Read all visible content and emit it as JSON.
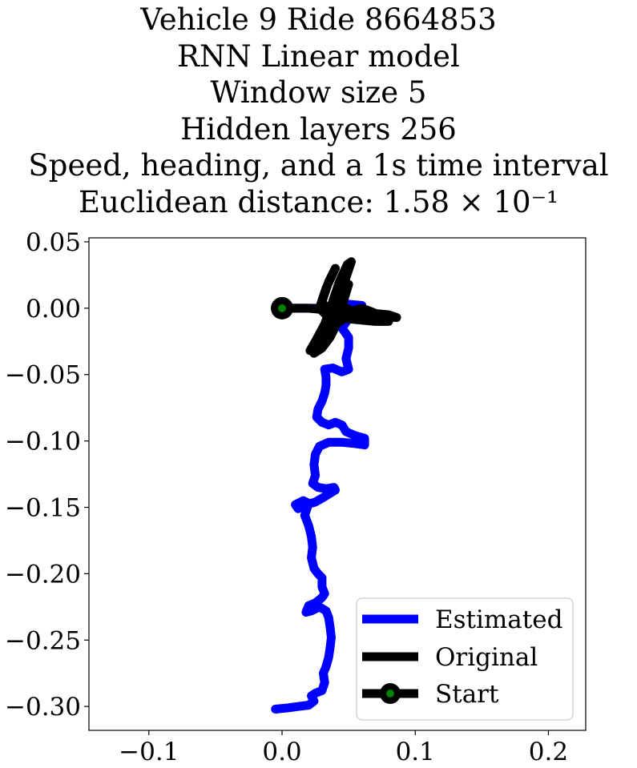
{
  "chart_data": {
    "type": "line",
    "title_lines": [
      "Vehicle 9 Ride 8664853",
      "RNN Linear model",
      "Window size 5",
      "Hidden layers 256",
      "Speed, heading, and a 1s time interval",
      "Euclidean distance: 1.58 × 10⁻¹"
    ],
    "xlabel": "",
    "ylabel": "",
    "xlim": [
      -0.145,
      0.228
    ],
    "ylim": [
      -0.318,
      0.053
    ],
    "xticks": [
      -0.1,
      0.0,
      0.1,
      0.2
    ],
    "xtick_labels": [
      "−0.1",
      "0.0",
      "0.1",
      "0.2"
    ],
    "yticks": [
      0.05,
      0.0,
      -0.05,
      -0.1,
      -0.15,
      -0.2,
      -0.25,
      -0.3
    ],
    "ytick_labels": [
      "0.05",
      "0.00",
      "−0.05",
      "−0.10",
      "−0.15",
      "−0.20",
      "−0.25",
      "−0.30"
    ],
    "grid": false,
    "legend_position": "lower-right",
    "series": [
      {
        "name": "Estimated",
        "color": "#0000ff",
        "points": [
          [
            0.0,
            0.0
          ],
          [
            0.02,
            0.0
          ],
          [
            0.035,
            0.0
          ],
          [
            0.05,
            0.003
          ],
          [
            0.06,
            0.002
          ],
          [
            0.058,
            -0.005
          ],
          [
            0.05,
            -0.008
          ],
          [
            0.045,
            -0.015
          ],
          [
            0.05,
            -0.022
          ],
          [
            0.05,
            -0.03
          ],
          [
            0.048,
            -0.038
          ],
          [
            0.05,
            -0.046
          ],
          [
            0.045,
            -0.048
          ],
          [
            0.038,
            -0.045
          ],
          [
            0.032,
            -0.046
          ],
          [
            0.033,
            -0.052
          ],
          [
            0.033,
            -0.058
          ],
          [
            0.032,
            -0.064
          ],
          [
            0.03,
            -0.07
          ],
          [
            0.027,
            -0.076
          ],
          [
            0.026,
            -0.082
          ],
          [
            0.03,
            -0.086
          ],
          [
            0.035,
            -0.088
          ],
          [
            0.04,
            -0.086
          ],
          [
            0.045,
            -0.088
          ],
          [
            0.048,
            -0.093
          ],
          [
            0.055,
            -0.096
          ],
          [
            0.062,
            -0.098
          ],
          [
            0.062,
            -0.103
          ],
          [
            0.055,
            -0.102
          ],
          [
            0.045,
            -0.101
          ],
          [
            0.035,
            -0.101
          ],
          [
            0.028,
            -0.104
          ],
          [
            0.025,
            -0.11
          ],
          [
            0.024,
            -0.118
          ],
          [
            0.025,
            -0.126
          ],
          [
            0.023,
            -0.132
          ],
          [
            0.027,
            -0.135
          ],
          [
            0.033,
            -0.136
          ],
          [
            0.039,
            -0.135
          ],
          [
            0.04,
            -0.137
          ],
          [
            0.032,
            -0.142
          ],
          [
            0.025,
            -0.146
          ],
          [
            0.018,
            -0.148
          ],
          [
            0.012,
            -0.151
          ],
          [
            0.01,
            -0.148
          ],
          [
            0.016,
            -0.145
          ],
          [
            0.02,
            -0.147
          ],
          [
            0.017,
            -0.156
          ],
          [
            0.02,
            -0.164
          ],
          [
            0.022,
            -0.172
          ],
          [
            0.023,
            -0.18
          ],
          [
            0.022,
            -0.188
          ],
          [
            0.024,
            -0.196
          ],
          [
            0.027,
            -0.2
          ],
          [
            0.03,
            -0.203
          ],
          [
            0.03,
            -0.21
          ],
          [
            0.032,
            -0.215
          ],
          [
            0.03,
            -0.218
          ],
          [
            0.025,
            -0.222
          ],
          [
            0.02,
            -0.224
          ],
          [
            0.018,
            -0.229
          ],
          [
            0.022,
            -0.228
          ],
          [
            0.028,
            -0.225
          ],
          [
            0.033,
            -0.228
          ],
          [
            0.035,
            -0.233
          ],
          [
            0.036,
            -0.24
          ],
          [
            0.037,
            -0.248
          ],
          [
            0.036,
            -0.256
          ],
          [
            0.035,
            -0.263
          ],
          [
            0.033,
            -0.27
          ],
          [
            0.031,
            -0.275
          ],
          [
            0.032,
            -0.282
          ],
          [
            0.03,
            -0.288
          ],
          [
            0.025,
            -0.29
          ],
          [
            0.022,
            -0.292
          ],
          [
            0.024,
            -0.296
          ],
          [
            0.02,
            -0.299
          ],
          [
            0.012,
            -0.3
          ],
          [
            0.005,
            -0.301
          ],
          [
            -0.005,
            -0.302
          ]
        ]
      },
      {
        "name": "Original",
        "color": "#000000",
        "points": [
          [
            0.0,
            0.0
          ],
          [
            0.02,
            0.0
          ],
          [
            0.04,
            -0.002
          ],
          [
            0.06,
            -0.003
          ],
          [
            0.08,
            -0.005
          ],
          [
            0.086,
            -0.007
          ],
          [
            0.07,
            -0.006
          ],
          [
            0.055,
            -0.004
          ],
          [
            0.045,
            -0.005
          ],
          [
            0.038,
            -0.01
          ],
          [
            0.032,
            -0.018
          ],
          [
            0.026,
            -0.025
          ],
          [
            0.021,
            -0.032
          ],
          [
            0.025,
            -0.025
          ],
          [
            0.032,
            -0.012
          ],
          [
            0.038,
            0.005
          ],
          [
            0.043,
            0.02
          ],
          [
            0.049,
            0.033
          ],
          [
            0.052,
            0.035
          ],
          [
            0.047,
            0.02
          ],
          [
            0.042,
            0.005
          ],
          [
            0.038,
            -0.01
          ],
          [
            0.035,
            -0.02
          ],
          [
            0.04,
            -0.01
          ],
          [
            0.046,
            0.005
          ],
          [
            0.05,
            0.018
          ],
          [
            0.044,
            0.01
          ],
          [
            0.036,
            -0.005
          ],
          [
            0.03,
            0.005
          ],
          [
            0.035,
            0.02
          ],
          [
            0.04,
            0.03
          ],
          [
            0.033,
            0.015
          ],
          [
            0.028,
            0.0
          ],
          [
            0.034,
            -0.006
          ],
          [
            0.05,
            -0.008
          ],
          [
            0.07,
            -0.01
          ],
          [
            0.08,
            -0.01
          ],
          [
            0.065,
            -0.007
          ],
          [
            0.05,
            -0.006
          ],
          [
            0.04,
            -0.012
          ],
          [
            0.033,
            -0.02
          ],
          [
            0.028,
            -0.028
          ],
          [
            0.024,
            -0.034
          ],
          [
            0.03,
            -0.03
          ],
          [
            0.036,
            -0.022
          ],
          [
            0.042,
            -0.01
          ],
          [
            0.048,
            0.0
          ],
          [
            0.053,
            -0.002
          ],
          [
            0.06,
            0.0
          ],
          [
            0.068,
            -0.003
          ],
          [
            0.078,
            -0.008
          ]
        ]
      }
    ],
    "start": {
      "name": "Start",
      "x": 0.0,
      "y": 0.0,
      "marker_color": "#000000",
      "center_color": "#008000"
    }
  }
}
